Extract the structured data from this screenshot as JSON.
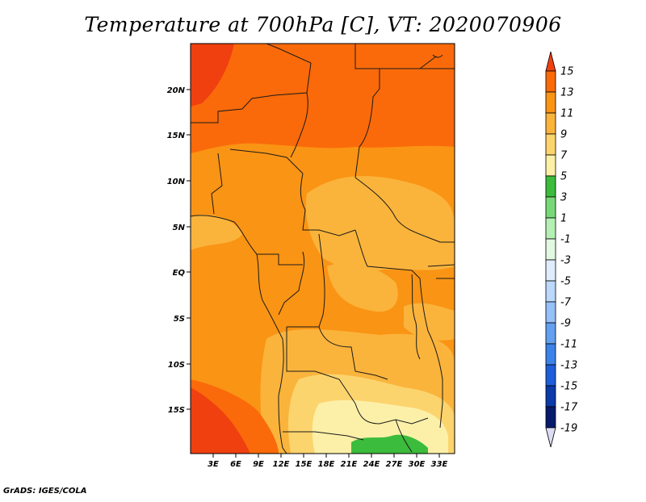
{
  "title": "Temperature at 700hPa [C], VT: 2020070906",
  "credit": "GrADS: IGES/COLA",
  "map": {
    "lat_labels": [
      "20N",
      "15N",
      "10N",
      "5N",
      "EQ",
      "5S",
      "10S",
      "15S"
    ],
    "lon_labels": [
      "3E",
      "6E",
      "9E",
      "12E",
      "15E",
      "18E",
      "21E",
      "24E",
      "27E",
      "30E",
      "33E"
    ]
  },
  "colorbar": {
    "labels": [
      "15",
      "13",
      "11",
      "9",
      "7",
      "5",
      "3",
      "1",
      "-1",
      "-3",
      "-5",
      "-7",
      "-9",
      "-11",
      "-13",
      "-15",
      "-17",
      "-19"
    ],
    "colors": [
      "#f04010",
      "#fa6a0a",
      "#fa9414",
      "#fab43c",
      "#fcd46e",
      "#fcf0a8",
      "#3cbc3c",
      "#78d878",
      "#b4f0b4",
      "#e2f8e2",
      "#e0ecfc",
      "#bcd8fc",
      "#96c0f8",
      "#64a0f0",
      "#3c82e8",
      "#1e5ed8",
      "#0c3aa8",
      "#081a6c",
      "#dcdcf4"
    ]
  }
}
